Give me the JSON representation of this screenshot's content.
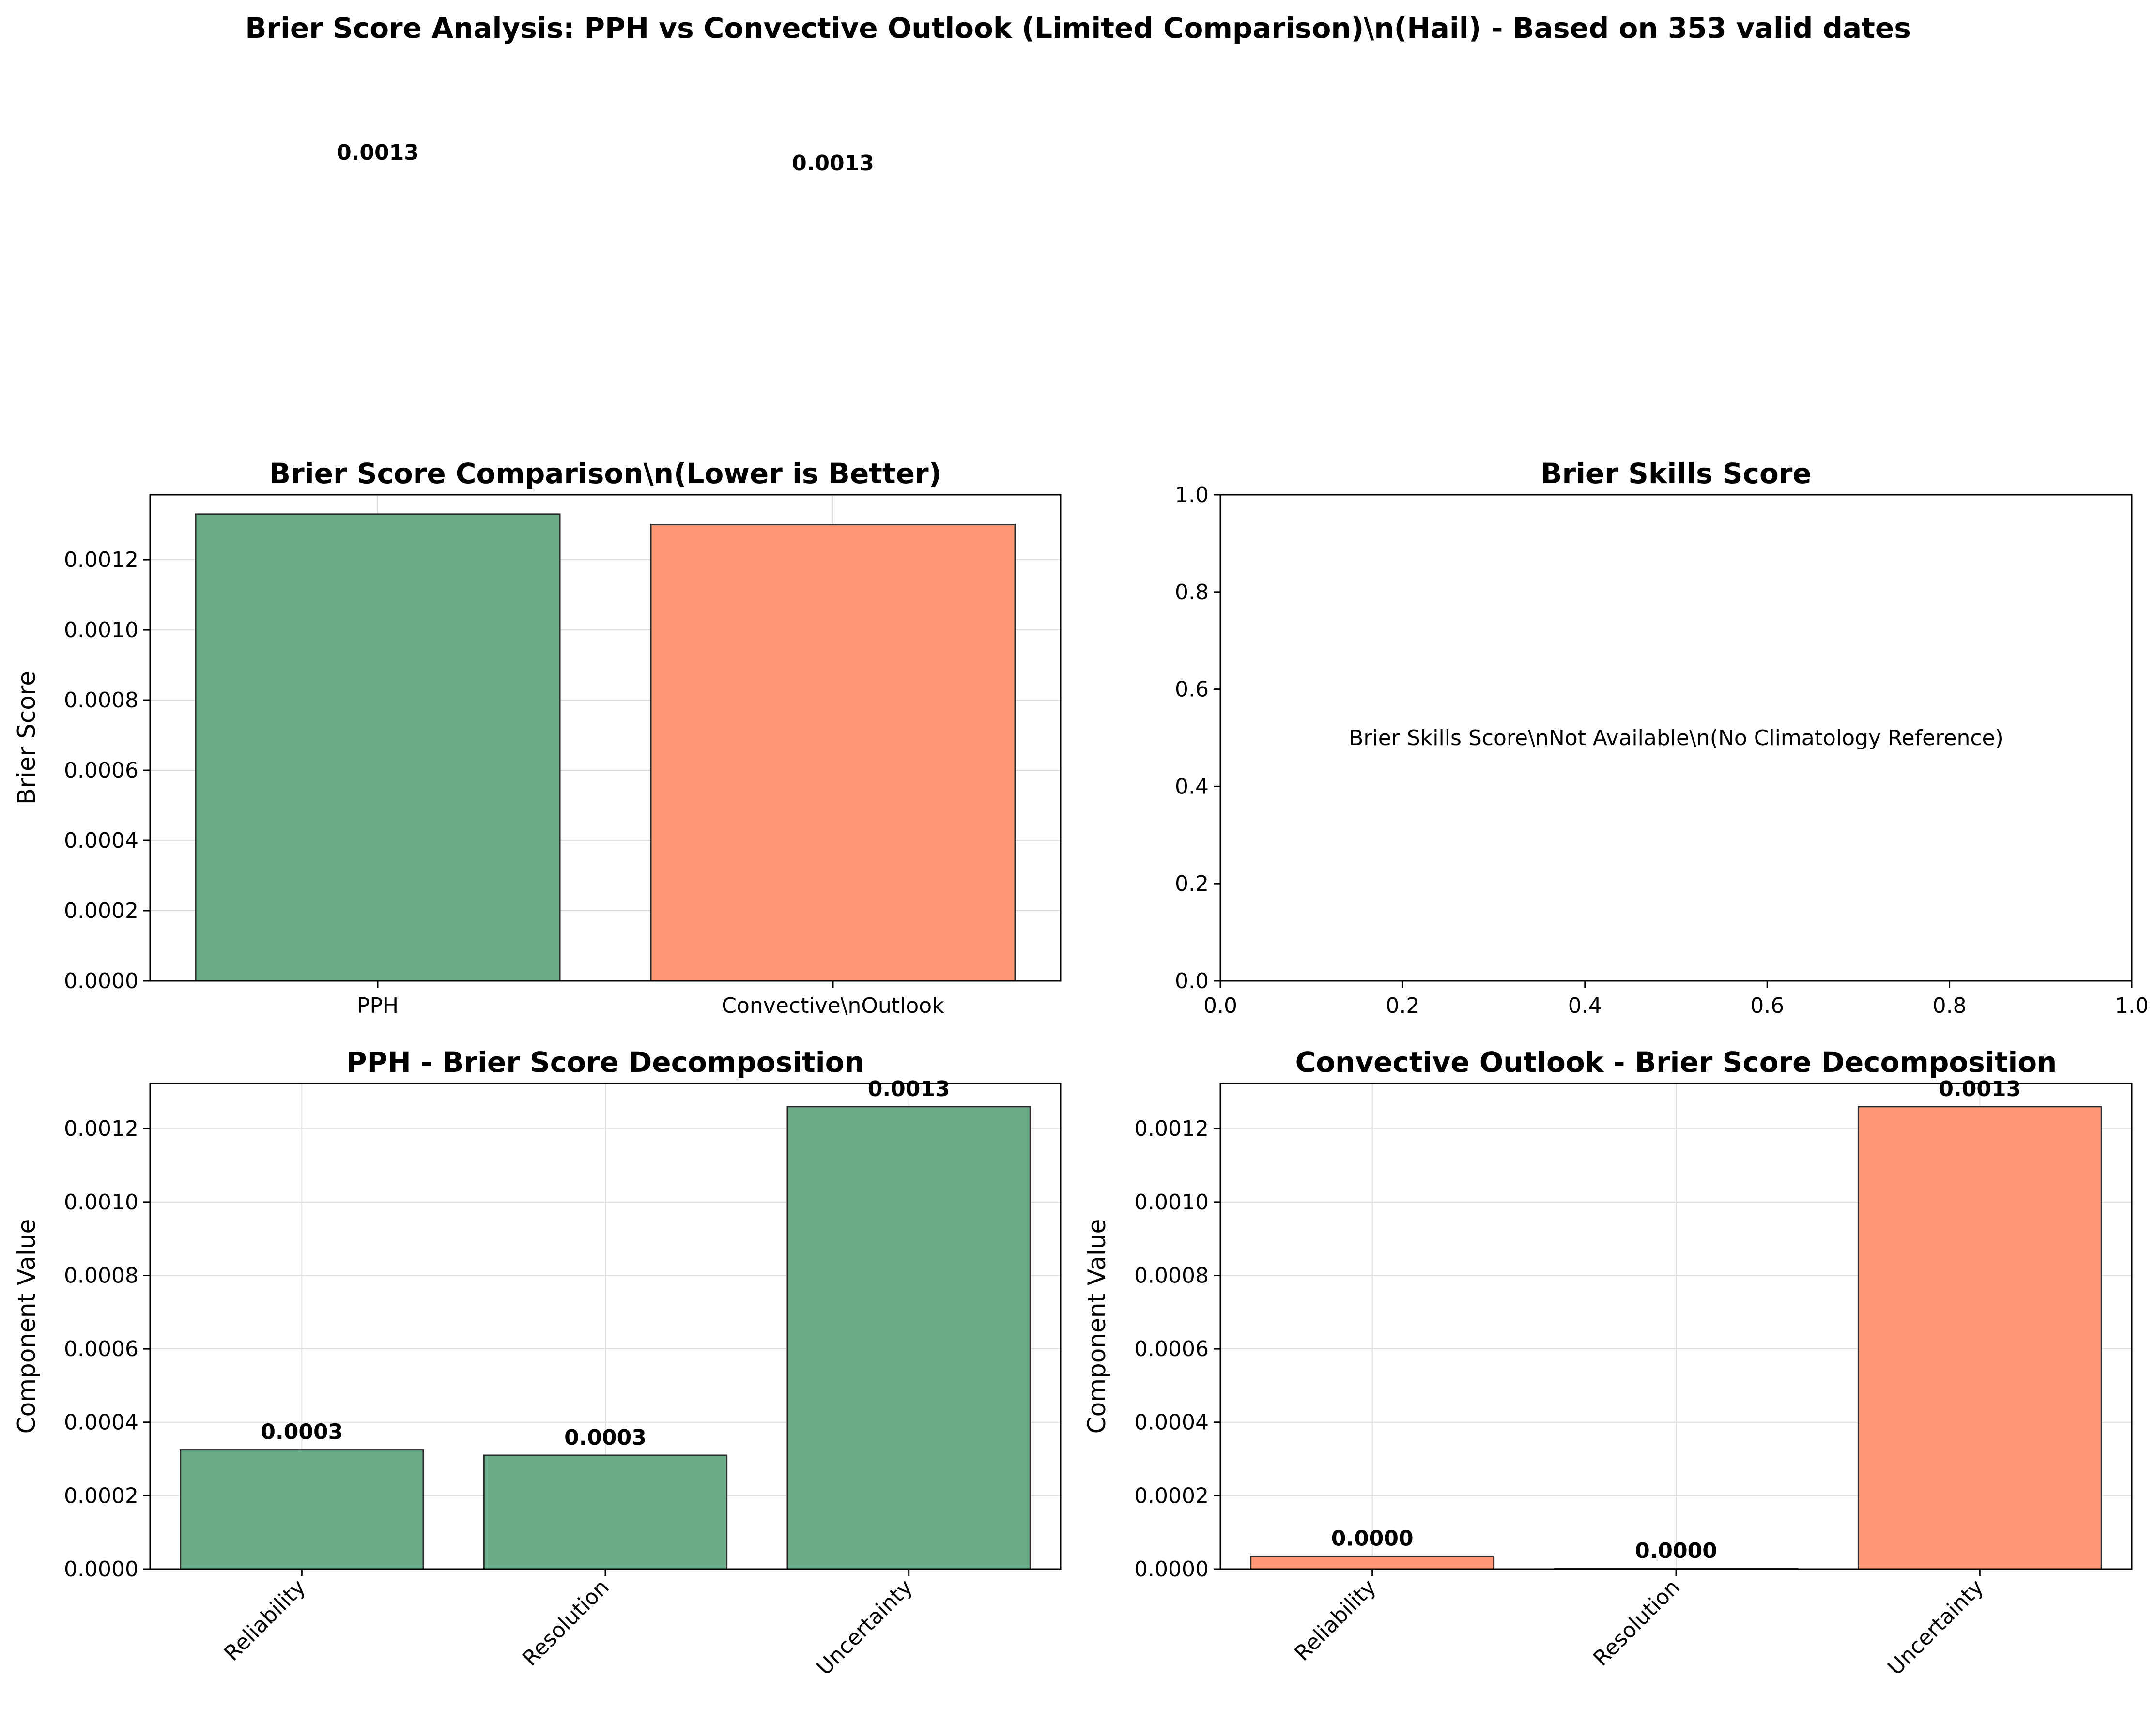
{
  "figure": {
    "suptitle": "Brier Score Analysis: PPH vs Convective Outlook (Limited Comparison)\\n(Hail) - Based on 353 valid dates"
  },
  "colors": {
    "pph": "#6aac87",
    "convective": "#ff9673",
    "edge": "#2b2b2b",
    "grid": "#dddddd"
  },
  "chart_data": [
    {
      "id": "comparison",
      "type": "bar",
      "title": "Brier Score Comparison\\n(Lower is Better)",
      "xlabel": "",
      "ylabel": "Brier Score",
      "categories": [
        "PPH",
        "Convective\\nOutlook"
      ],
      "values": [
        0.00133,
        0.0013
      ],
      "value_labels": [
        "0.0013",
        "0.0013"
      ],
      "colors": [
        "#6aac87",
        "#ff9673"
      ],
      "ylim": [
        0,
        0.001385
      ],
      "yticks": [
        0.0,
        0.0002,
        0.0004,
        0.0006,
        0.0008,
        0.001,
        0.0012
      ],
      "ytick_labels": [
        "0.0000",
        "0.0002",
        "0.0004",
        "0.0006",
        "0.0008",
        "0.0010",
        "0.0012"
      ],
      "grid": true
    },
    {
      "id": "skills",
      "type": "bar",
      "title": "Brier Skills Score",
      "xlabel": "",
      "ylabel": "",
      "xlim": [
        0,
        1
      ],
      "ylim": [
        0,
        1
      ],
      "xticks": [
        0.0,
        0.2,
        0.4,
        0.6,
        0.8,
        1.0
      ],
      "xtick_labels": [
        "0.0",
        "0.2",
        "0.4",
        "0.6",
        "0.8",
        "1.0"
      ],
      "yticks": [
        0.0,
        0.2,
        0.4,
        0.6,
        0.8,
        1.0
      ],
      "ytick_labels": [
        "0.0",
        "0.2",
        "0.4",
        "0.6",
        "0.8",
        "1.0"
      ],
      "annotation": "Brier Skills Score\\nNot Available\\n(No Climatology Reference)",
      "grid": false
    },
    {
      "id": "pph_decomp",
      "type": "bar",
      "title": "PPH - Brier Score Decomposition",
      "xlabel": "",
      "ylabel": "Component Value",
      "categories": [
        "Reliability",
        "Resolution",
        "Uncertainty"
      ],
      "values": [
        0.000325,
        0.00031,
        0.00126
      ],
      "value_labels": [
        "0.0003",
        "0.0003",
        "0.0013"
      ],
      "colors": [
        "#6aac87",
        "#6aac87",
        "#6aac87"
      ],
      "ylim": [
        0,
        0.001323
      ],
      "yticks": [
        0.0,
        0.0002,
        0.0004,
        0.0006,
        0.0008,
        0.001,
        0.0012
      ],
      "ytick_labels": [
        "0.0000",
        "0.0002",
        "0.0004",
        "0.0006",
        "0.0008",
        "0.0010",
        "0.0012"
      ],
      "grid": true
    },
    {
      "id": "conv_decomp",
      "type": "bar",
      "title": "Convective Outlook - Brier Score Decomposition",
      "xlabel": "",
      "ylabel": "Component Value",
      "categories": [
        "Reliability",
        "Resolution",
        "Uncertainty"
      ],
      "values": [
        3.5e-05,
        1e-06,
        0.00126
      ],
      "value_labels": [
        "0.0000",
        "0.0000",
        "0.0013"
      ],
      "colors": [
        "#ff9673",
        "#ff9673",
        "#ff9673"
      ],
      "ylim": [
        0,
        0.001323
      ],
      "yticks": [
        0.0,
        0.0002,
        0.0004,
        0.0006,
        0.0008,
        0.001,
        0.0012
      ],
      "ytick_labels": [
        "0.0000",
        "0.0002",
        "0.0004",
        "0.0006",
        "0.0008",
        "0.0010",
        "0.0012"
      ],
      "grid": true
    }
  ]
}
